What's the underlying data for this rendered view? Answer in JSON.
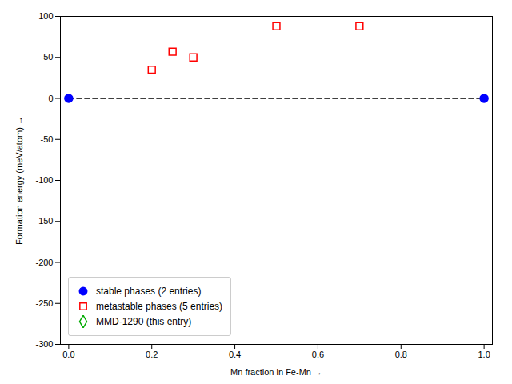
{
  "chart_data": {
    "type": "scatter",
    "xlabel": "Mn fraction in Fe-Mn",
    "ylabel": "Formation energy (meV/atom)",
    "xlim": [
      -0.02,
      1.02
    ],
    "ylim": [
      -300,
      100
    ],
    "xticks": [
      {
        "value": 0,
        "label": "0.0"
      },
      0.2,
      0.4,
      0.6,
      0.8,
      {
        "value": 1,
        "label": "1.0"
      }
    ],
    "yticks": [
      -300,
      -250,
      -200,
      -150,
      -100,
      -50,
      0,
      50,
      100
    ],
    "grid": false,
    "legend": "lower left",
    "series": [
      {
        "type": "line",
        "line_style": "dashed",
        "color": "#000000",
        "x": [
          0.0,
          1.0
        ],
        "values": [
          0.0,
          0.0
        ]
      },
      {
        "name": "stable phases (2 entries)",
        "type": "scatter",
        "marker": "circle",
        "color": "#0000ff",
        "x": [
          0.0,
          1.0
        ],
        "values": [
          0.0,
          0.0
        ]
      },
      {
        "name": "metastable phases (5 entries)",
        "type": "scatter",
        "marker": "open_square",
        "color": "#ff0000",
        "x": [
          0.2,
          0.25,
          0.3,
          0.5,
          0.7
        ],
        "values": [
          35.0,
          57.0,
          50.0,
          88.0,
          88.0
        ]
      },
      {
        "name": "MMD-1290 (this entry)",
        "type": "scatter",
        "marker": "open_diamond",
        "color": "#00aa00",
        "x": [],
        "values": []
      }
    ]
  }
}
